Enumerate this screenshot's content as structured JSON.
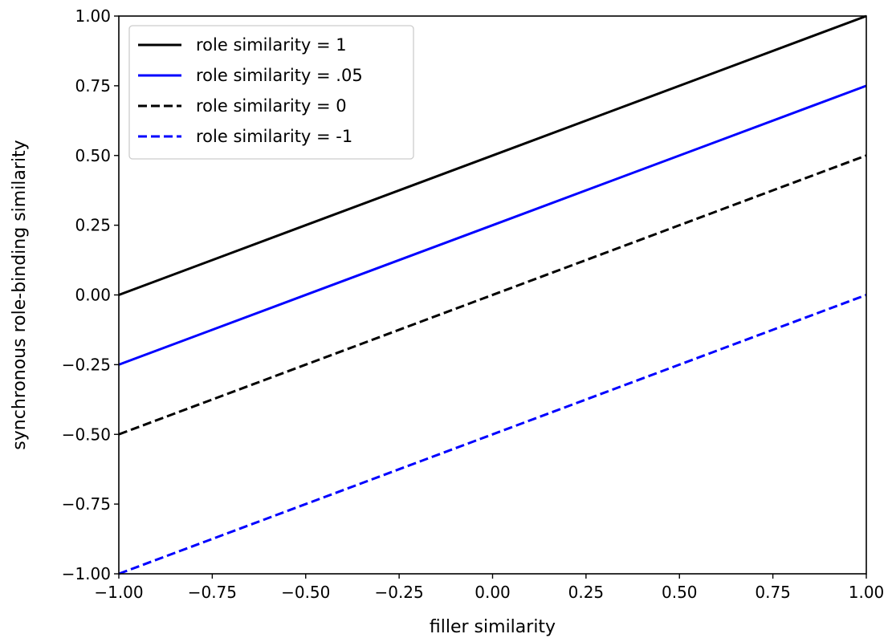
{
  "chart_data": {
    "type": "line",
    "title": "",
    "xlabel": "filler similarity",
    "ylabel": "synchronous role-binding similarity",
    "xlim": [
      -1.0,
      1.0
    ],
    "ylim": [
      -1.0,
      1.0
    ],
    "xticks": [
      -1.0,
      -0.75,
      -0.5,
      -0.25,
      0.0,
      0.25,
      0.5,
      0.75,
      1.0
    ],
    "yticks": [
      -1.0,
      -0.75,
      -0.5,
      -0.25,
      0.0,
      0.25,
      0.5,
      0.75,
      1.0
    ],
    "xtick_labels": [
      "−1.00",
      "−0.75",
      "−0.50",
      "−0.25",
      "0.00",
      "0.25",
      "0.50",
      "0.75",
      "1.00"
    ],
    "ytick_labels": [
      "−1.00",
      "−0.75",
      "−0.50",
      "−0.25",
      "0.00",
      "0.25",
      "0.50",
      "0.75",
      "1.00"
    ],
    "grid": false,
    "legend_position": "top-left",
    "series": [
      {
        "name": "role similarity = 1",
        "color": "#000000",
        "style": "solid",
        "x": [
          -1.0,
          1.0
        ],
        "y": [
          0.0,
          1.0
        ]
      },
      {
        "name": "role similarity = .05",
        "color": "#0000ff",
        "style": "solid",
        "x": [
          -1.0,
          1.0
        ],
        "y": [
          -0.25,
          0.75
        ]
      },
      {
        "name": "role similarity = 0",
        "color": "#000000",
        "style": "dashed",
        "x": [
          -1.0,
          1.0
        ],
        "y": [
          -0.5,
          0.5
        ]
      },
      {
        "name": "role similarity = -1",
        "color": "#0000ff",
        "style": "dashed",
        "x": [
          -1.0,
          1.0
        ],
        "y": [
          -1.0,
          0.0
        ]
      }
    ]
  }
}
